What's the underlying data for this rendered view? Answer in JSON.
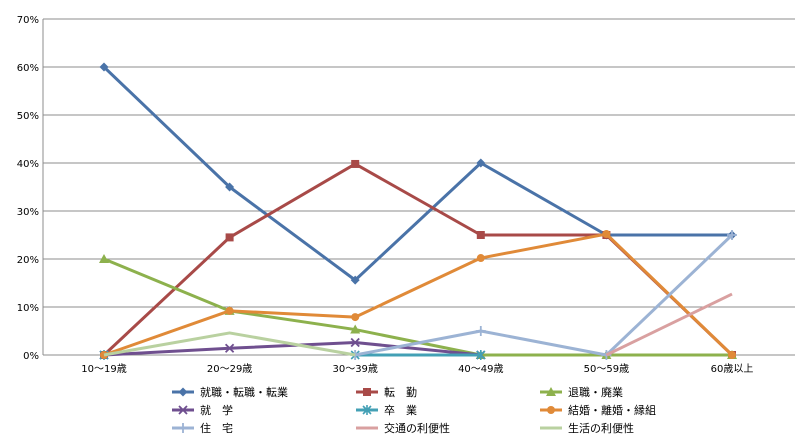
{
  "chart_data": {
    "type": "line",
    "title": "",
    "xlabel": "",
    "ylabel": "",
    "categories": [
      "10～19歳",
      "20～29歳",
      "30～39歳",
      "40～49歳",
      "50～59歳",
      "60歳以上"
    ],
    "y_tick_labels": [
      "0%",
      "10%",
      "20%",
      "30%",
      "40%",
      "50%",
      "60%",
      "70%"
    ],
    "ylim": [
      0,
      70
    ],
    "grid": true,
    "legend_position": "bottom",
    "series": [
      {
        "name": "就職・転職・転業",
        "color": "#4a73a8",
        "marker": "diamond",
        "values": [
          60,
          35,
          15.6,
          40,
          25,
          25
        ]
      },
      {
        "name": "転　勤",
        "color": "#a84a48",
        "marker": "square",
        "values": [
          0,
          24.5,
          39.8,
          25,
          25,
          0
        ]
      },
      {
        "name": "退職・廃業",
        "color": "#8db14d",
        "marker": "triangle",
        "values": [
          20,
          9.2,
          5.3,
          0,
          0,
          0
        ]
      },
      {
        "name": "就　学",
        "color": "#6f4f8f",
        "marker": "x",
        "values": [
          0,
          1.4,
          2.6,
          0,
          null,
          null
        ]
      },
      {
        "name": "卒　業",
        "color": "#43a0b5",
        "marker": "star",
        "values": [
          0,
          null,
          0,
          0,
          null,
          null
        ]
      },
      {
        "name": "結婚・離婚・縁組",
        "color": "#e08a38",
        "marker": "circle",
        "values": [
          0,
          9.2,
          7.9,
          20.2,
          25.2,
          0
        ]
      },
      {
        "name": "住　宅",
        "color": "#9cb3d4",
        "marker": "plus",
        "values": [
          null,
          null,
          0,
          5,
          0,
          25
        ]
      },
      {
        "name": "交通の利便性",
        "color": "#d9a0a0",
        "marker": "none",
        "values": [
          null,
          null,
          null,
          null,
          0,
          12.7
        ]
      },
      {
        "name": "生活の利便性",
        "color": "#b9d1a0",
        "marker": "none",
        "values": [
          0,
          4.6,
          0,
          null,
          null,
          null
        ]
      }
    ]
  }
}
